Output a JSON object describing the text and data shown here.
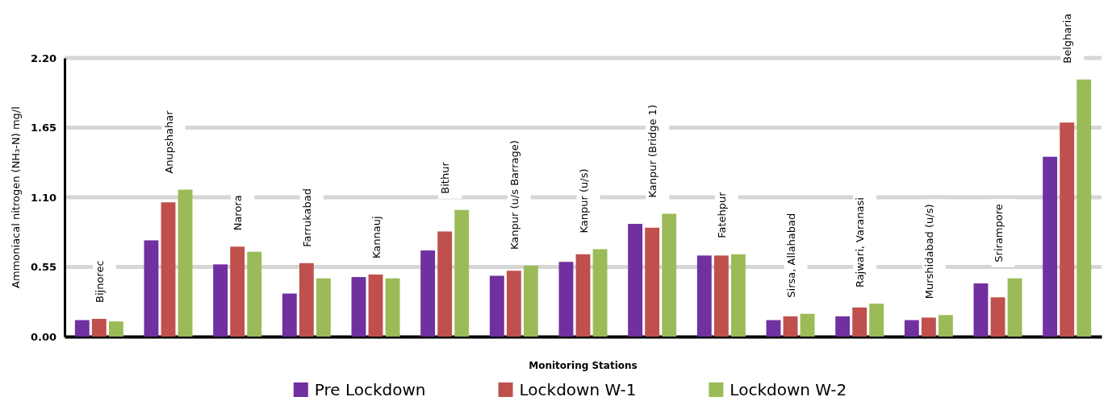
{
  "chart_data": {
    "type": "bar",
    "xlabel": "Monitoring Stations",
    "ylabel": "Ammoniacal nitrogen (NH₃-N) mg/l",
    "categories": [
      "Bijnorec",
      "Anupshahar",
      "Narora",
      "Farrukabad",
      "Kannauj",
      "Bithur",
      "Kanpur (u/s Barrage)",
      "Kanpur (u/s)",
      "Kanpur (Bridge 1)",
      "Fatehpur",
      "Sirsa, Allahabad",
      "Rajwari, Varanasi",
      "Murshidabad (u/s)",
      "Srirampore",
      "Belgharia"
    ],
    "series": [
      {
        "name": "Pre Lockdown",
        "color": "#7030a0",
        "values": [
          0.13,
          0.76,
          0.57,
          0.34,
          0.47,
          0.68,
          0.48,
          0.59,
          0.89,
          0.64,
          0.13,
          0.16,
          0.13,
          0.42,
          1.42
        ]
      },
      {
        "name": "Lockdown W-1",
        "color": "#c0504d",
        "values": [
          0.14,
          1.06,
          0.71,
          0.58,
          0.49,
          0.83,
          0.52,
          0.65,
          0.86,
          0.64,
          0.16,
          0.23,
          0.15,
          0.31,
          1.69
        ]
      },
      {
        "name": "Lockdown W-2",
        "color": "#9bbb59",
        "values": [
          0.12,
          1.16,
          0.67,
          0.46,
          0.46,
          1.0,
          0.56,
          0.69,
          0.97,
          0.65,
          0.18,
          0.26,
          0.17,
          0.46,
          2.03
        ]
      }
    ],
    "ylim": [
      0,
      2.2
    ],
    "yticks": [
      {
        "value": 0,
        "label": "0.00"
      },
      {
        "value": 0.55,
        "label": "0.55"
      },
      {
        "value": 1.1,
        "label": "1.10"
      },
      {
        "value": 1.65,
        "label": "1.65"
      },
      {
        "value": 2.2,
        "label": "2.20"
      }
    ],
    "grid": "y",
    "legend": "bottom"
  }
}
